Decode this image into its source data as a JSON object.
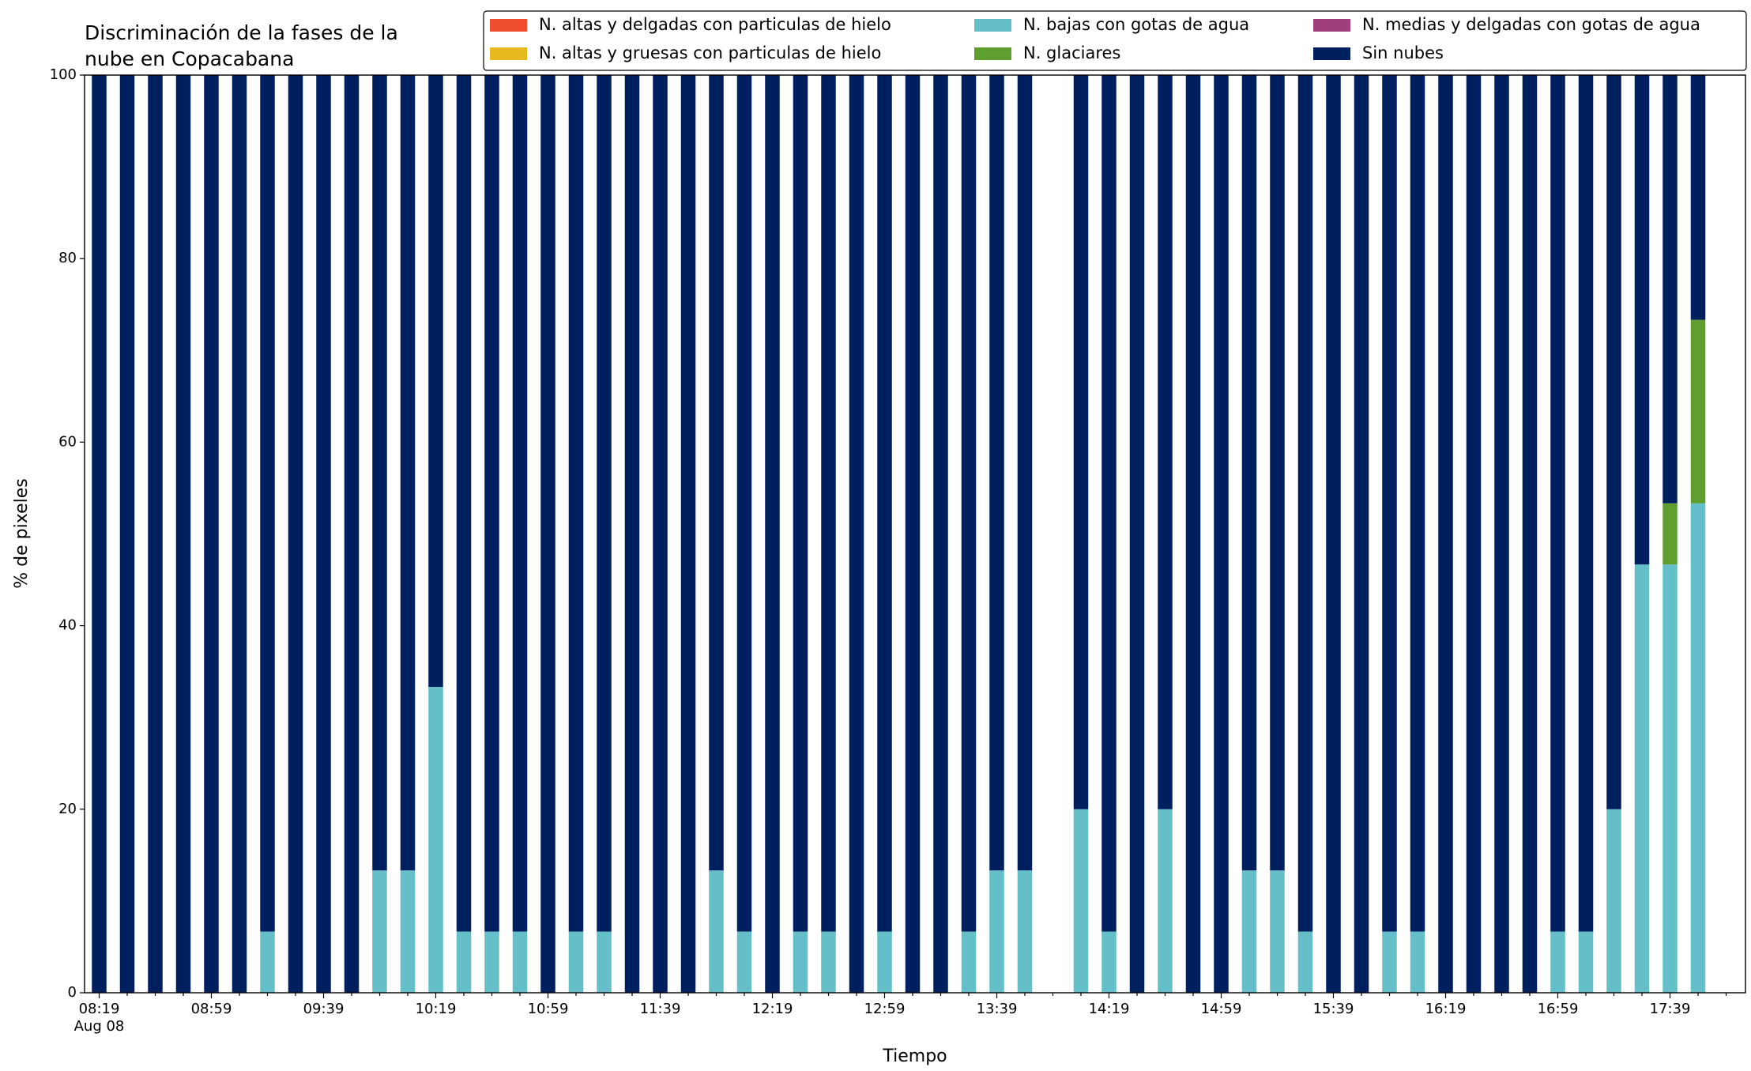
{
  "chart_data": {
    "type": "stacked_bar",
    "title": [
      "Discriminación de la fases de la",
      "nube en Copacabana"
    ],
    "xlabel": "Tiempo",
    "ylabel": "% de pixeles",
    "date_label": "Aug 08",
    "categories": [
      "08:19",
      null,
      null,
      null,
      "08:59",
      null,
      null,
      null,
      "09:39",
      null,
      null,
      null,
      "10:19",
      null,
      null,
      null,
      "10:59",
      null,
      null,
      null,
      "11:39",
      null,
      null,
      null,
      "12:19",
      null,
      null,
      null,
      "12:59",
      null,
      null,
      null,
      "13:39",
      null,
      null,
      null,
      "14:19",
      null,
      null,
      null,
      "14:59",
      null,
      null,
      null,
      "15:39",
      null,
      null,
      null,
      "16:19",
      null,
      null,
      null,
      "16:59",
      null,
      null,
      null,
      "17:39",
      null
    ],
    "ylim": [
      0,
      100
    ],
    "yticks": [
      0,
      20,
      40,
      60,
      80,
      100
    ],
    "grid": false,
    "legend": "top right",
    "series": [
      {
        "name": "N. altas y delgadas con particulas de hielo",
        "color": "#ee4c2c",
        "values": [
          0,
          0,
          0,
          0,
          0,
          0,
          0,
          0,
          0,
          0,
          0,
          0,
          0,
          0,
          0,
          0,
          0,
          0,
          0,
          0,
          0,
          0,
          0,
          0,
          0,
          0,
          0,
          0,
          0,
          0,
          0,
          0,
          0,
          0,
          null,
          0,
          0,
          0,
          0,
          0,
          0,
          0,
          0,
          0,
          0,
          0,
          0,
          0,
          0,
          0,
          0,
          0,
          0,
          0,
          0,
          0,
          0,
          0
        ]
      },
      {
        "name": "N. altas y gruesas con particulas de hielo",
        "color": "#e6b91e",
        "values": [
          0,
          0,
          0,
          0,
          0,
          0,
          0,
          0,
          0,
          0,
          0,
          0,
          0,
          0,
          0,
          0,
          0,
          0,
          0,
          0,
          0,
          0,
          0,
          0,
          0,
          0,
          0,
          0,
          0,
          0,
          0,
          0,
          0,
          0,
          null,
          0,
          0,
          0,
          0,
          0,
          0,
          0,
          0,
          0,
          0,
          0,
          0,
          0,
          0,
          0,
          0,
          0,
          0,
          0,
          0,
          0,
          0,
          0
        ]
      },
      {
        "name": "N. bajas con gotas de agua",
        "color": "#65bfc9",
        "values": [
          0,
          0,
          0,
          0,
          0,
          0,
          6.67,
          0,
          0,
          0,
          13.33,
          13.33,
          33.33,
          6.67,
          6.67,
          6.67,
          0,
          6.67,
          6.67,
          0,
          0,
          0,
          13.33,
          6.67,
          0,
          6.67,
          6.67,
          0,
          6.67,
          0,
          0,
          6.67,
          13.33,
          13.33,
          null,
          20,
          6.67,
          0,
          20,
          0,
          0,
          13.33,
          13.33,
          6.67,
          0,
          0,
          6.67,
          6.67,
          0,
          0,
          0,
          0,
          6.67,
          6.67,
          20,
          46.67,
          46.67,
          53.33
        ]
      },
      {
        "name": "N. glaciares",
        "color": "#5e9f2f",
        "values": [
          0,
          0,
          0,
          0,
          0,
          0,
          0,
          0,
          0,
          0,
          0,
          0,
          0,
          0,
          0,
          0,
          0,
          0,
          0,
          0,
          0,
          0,
          0,
          0,
          0,
          0,
          0,
          0,
          0,
          0,
          0,
          0,
          0,
          0,
          null,
          0,
          0,
          0,
          0,
          0,
          0,
          0,
          0,
          0,
          0,
          0,
          0,
          0,
          0,
          0,
          0,
          0,
          0,
          0,
          0,
          0,
          6.67,
          20
        ]
      },
      {
        "name": "N. medias y delgadas con gotas de agua",
        "color": "#a0407a",
        "values": [
          0,
          0,
          0,
          0,
          0,
          0,
          0,
          0,
          0,
          0,
          0,
          0,
          0,
          0,
          0,
          0,
          0,
          0,
          0,
          0,
          0,
          0,
          0,
          0,
          0,
          0,
          0,
          0,
          0,
          0,
          0,
          0,
          0,
          0,
          null,
          0,
          0,
          0,
          0,
          0,
          0,
          0,
          0,
          0,
          0,
          0,
          0,
          0,
          0,
          0,
          0,
          0,
          0,
          0,
          0,
          0,
          0,
          0
        ]
      },
      {
        "name": "Sin nubes",
        "color": "#001f5f",
        "values": [
          100,
          100,
          100,
          100,
          100,
          100,
          93.33,
          100,
          100,
          100,
          86.67,
          86.67,
          66.67,
          93.33,
          93.33,
          93.33,
          100,
          93.33,
          93.33,
          100,
          100,
          100,
          86.67,
          93.33,
          100,
          93.33,
          93.33,
          100,
          93.33,
          100,
          100,
          93.33,
          86.67,
          86.67,
          null,
          80,
          93.33,
          100,
          80,
          100,
          100,
          86.67,
          86.67,
          93.33,
          100,
          100,
          93.33,
          93.33,
          100,
          100,
          100,
          100,
          93.33,
          93.33,
          80,
          53.33,
          46.67,
          26.67
        ]
      }
    ]
  }
}
